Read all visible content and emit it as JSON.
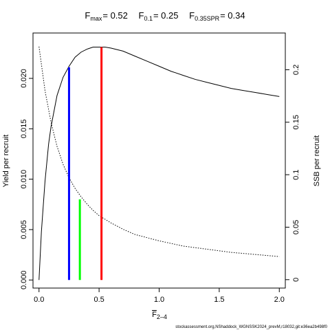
{
  "chart_data": {
    "type": "line",
    "title": {
      "fmax_label": "F",
      "fmax_sub": "max",
      "fmax_value": "= 0.52",
      "f01_label": "F",
      "f01_sub": "0.1",
      "f01_value": "= 0.25",
      "fspr_label": "F",
      "fspr_sub": "0.35SPR",
      "fspr_value": "= 0.34"
    },
    "xlabel": "F",
    "xlabel_sub": "2–4",
    "ylabel_left": "Yield per recruit",
    "ylabel_right": "SSB per recruit",
    "xlim": [
      -0.05,
      2.05
    ],
    "ylim_left": [
      -0.0008,
      0.0245
    ],
    "ylim_right": [
      -0.008,
      0.235
    ],
    "x_ticks": [
      0,
      0.5,
      1,
      1.5,
      2
    ],
    "x_tick_labels": [
      "0.0",
      "0.5",
      "1.0",
      "1.5",
      "2.0"
    ],
    "y_left_ticks": [
      0,
      0.005,
      0.01,
      0.015,
      0.02
    ],
    "y_left_tick_labels": [
      "0.000",
      "0.005",
      "0.010",
      "0.015",
      "0.020"
    ],
    "y_right_ticks": [
      0,
      0.05,
      0.1,
      0.15,
      0.2
    ],
    "y_right_tick_labels": [
      "0",
      "0.05",
      "0.1",
      "0.15",
      "0.2"
    ],
    "series": [
      {
        "name": "",
        "axis": "left",
        "style": "solid",
        "color": "#000000",
        "x": [
          0,
          0.02,
          0.05,
          0.08,
          0.1,
          0.15,
          0.2,
          0.25,
          0.3,
          0.35,
          0.4,
          0.45,
          0.5,
          0.55,
          0.6,
          0.7,
          0.8,
          0.9,
          1.0,
          1.1,
          1.2,
          1.3,
          1.4,
          1.5,
          1.6,
          1.7,
          1.8,
          1.9,
          2.0
        ],
        "y": [
          0,
          0.0048,
          0.0098,
          0.0135,
          0.0152,
          0.0183,
          0.0201,
          0.0212,
          0.0221,
          0.0226,
          0.0229,
          0.0231,
          0.0231,
          0.0231,
          0.023,
          0.0227,
          0.0222,
          0.0217,
          0.0212,
          0.0207,
          0.0203,
          0.0199,
          0.0196,
          0.0193,
          0.019,
          0.0188,
          0.0186,
          0.0184,
          0.0182
        ]
      },
      {
        "name": "",
        "axis": "right",
        "style": "dotted",
        "color": "#000000",
        "x": [
          0,
          0.05,
          0.1,
          0.15,
          0.2,
          0.25,
          0.3,
          0.35,
          0.4,
          0.45,
          0.5,
          0.6,
          0.7,
          0.8,
          0.9,
          1.0,
          1.2,
          1.4,
          1.6,
          1.8,
          2.0
        ],
        "y": [
          0.222,
          0.18,
          0.15,
          0.127,
          0.11,
          0.097,
          0.087,
          0.079,
          0.072,
          0.066,
          0.061,
          0.054,
          0.048,
          0.043,
          0.04,
          0.037,
          0.032,
          0.029,
          0.026,
          0.024,
          0.022
        ]
      }
    ],
    "reference_lines": [
      {
        "name": "F0.1",
        "x": 0.25,
        "y_top": 0.0211,
        "color": "#0000ff"
      },
      {
        "name": "F0.35SPR",
        "x": 0.34,
        "y_top": 0.008,
        "color": "#00ff00"
      },
      {
        "name": "Fmax",
        "x": 0.52,
        "y_top": 0.0231,
        "color": "#ff0000"
      }
    ]
  },
  "footer": "stockassessment.org,NShaddock_WGNSSK2024_prevM,r18032,git:e36ea2b498f0"
}
